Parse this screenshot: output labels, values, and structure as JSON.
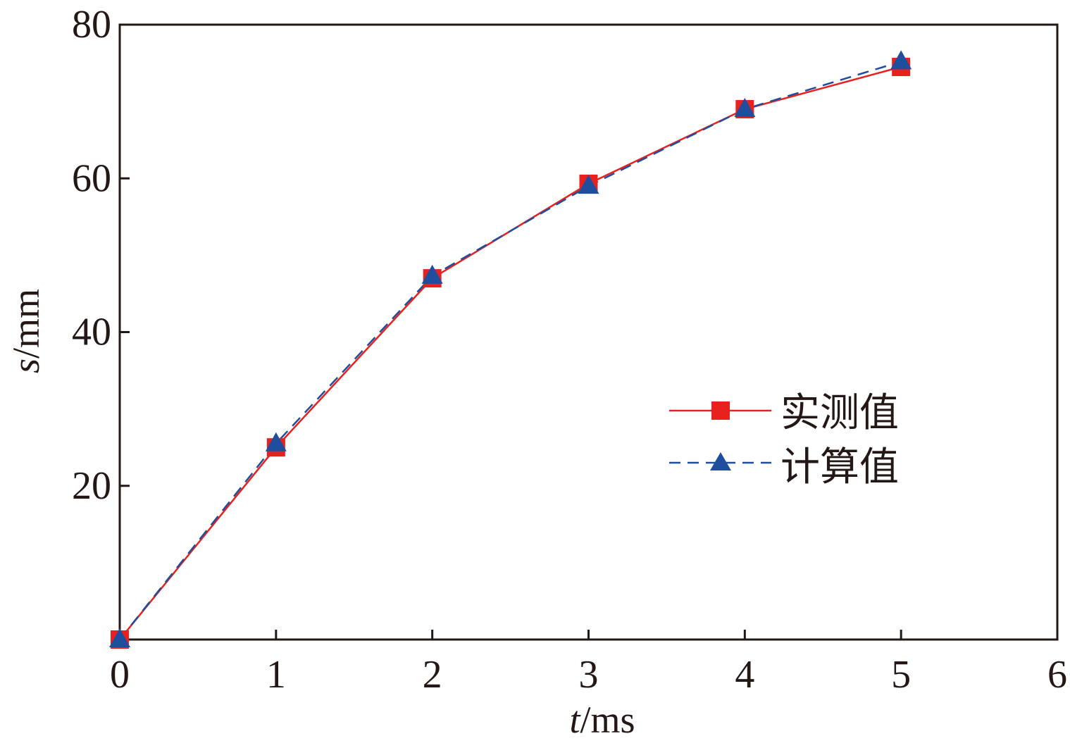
{
  "chart_data": {
    "type": "line",
    "x_axis": {
      "label_var": "t",
      "label_unit": "/ms",
      "range": [
        0,
        6
      ],
      "ticks": [
        0,
        1,
        2,
        3,
        4,
        5,
        6
      ],
      "tick_labels": [
        "0",
        "1",
        "2",
        "3",
        "4",
        "5",
        "6"
      ]
    },
    "y_axis": {
      "label_var": "s",
      "label_unit": "/mm",
      "range": [
        0,
        80
      ],
      "ticks": [
        20,
        40,
        60,
        80
      ],
      "tick_labels": [
        "20",
        "40",
        "60",
        "80"
      ]
    },
    "grid": false,
    "legend_position": "right-middle",
    "series": [
      {
        "name": "实测值",
        "color": "#e8211e",
        "marker": "square",
        "line_style": "solid",
        "x": [
          0,
          1,
          2,
          3,
          4,
          5
        ],
        "y": [
          0,
          25,
          47,
          59.3,
          69,
          74.5
        ]
      },
      {
        "name": "计算值",
        "color": "#1f4e9f",
        "marker": "triangle",
        "line_style": "dashed",
        "x": [
          0,
          1,
          2,
          3,
          4,
          5
        ],
        "y": [
          0,
          25.5,
          47.3,
          59,
          69,
          75.2
        ]
      }
    ]
  }
}
